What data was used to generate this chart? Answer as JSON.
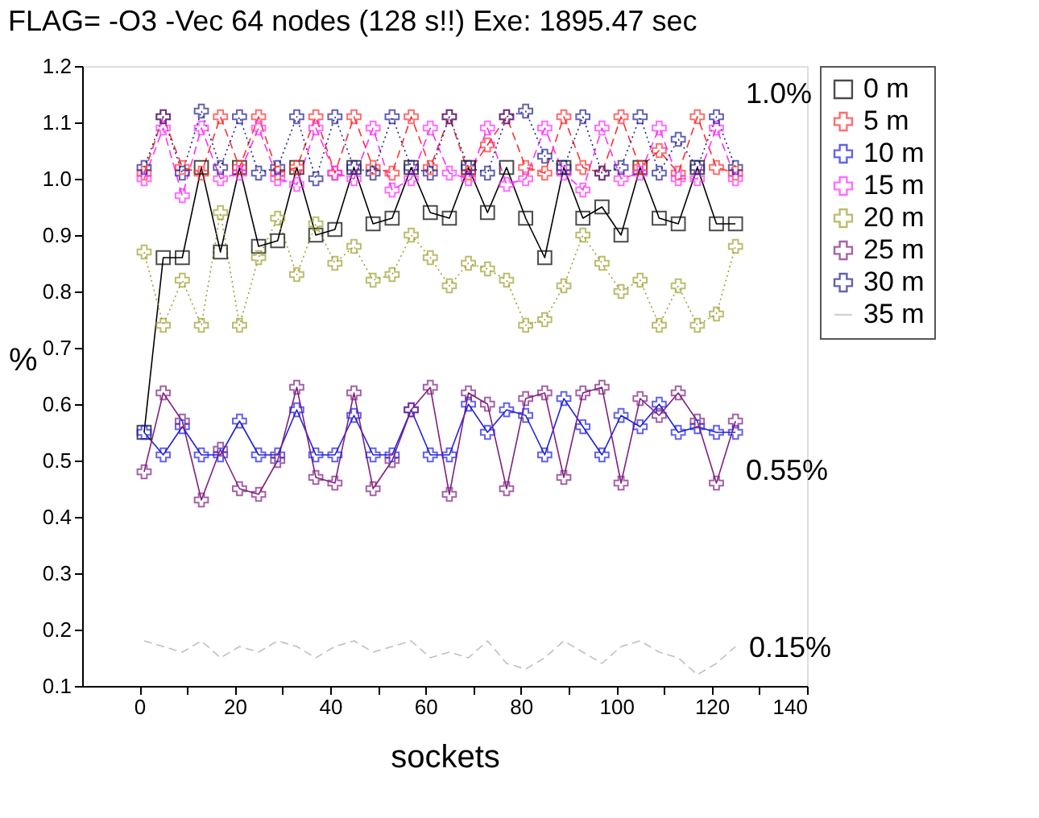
{
  "chart_data": {
    "type": "line",
    "title": "FLAG= -O3 -Vec   64 nodes (128 s!!) Exe: 1895.47 sec",
    "xlabel": "sockets",
    "ylabel": "%",
    "x": [
      1,
      5,
      9,
      13,
      17,
      21,
      25,
      29,
      33,
      37,
      41,
      45,
      49,
      53,
      57,
      61,
      65,
      69,
      73,
      77,
      81,
      85,
      89,
      93,
      97,
      101,
      105,
      109,
      113,
      117,
      121,
      125
    ],
    "xlim": [
      -12,
      140
    ],
    "xticks": [
      0,
      {
        "value": 10,
        "label": null
      },
      20,
      {
        "value": 30,
        "label": null
      },
      40,
      {
        "value": 50,
        "label": null
      },
      60,
      {
        "value": 70,
        "label": null
      },
      80,
      {
        "value": 90,
        "label": null
      },
      100,
      {
        "value": 110,
        "label": null
      },
      120,
      {
        "value": 130,
        "label": null
      },
      140
    ],
    "ylim": [
      0.1,
      1.2
    ],
    "yticks": [
      0.1,
      0.2,
      0.3,
      0.4,
      0.5,
      0.6,
      0.7,
      0.8,
      0.9,
      {
        "value": 1.0,
        "label": "1.0"
      },
      1.1,
      1.2
    ],
    "grid": false,
    "legend": "right",
    "annotations": [
      "1.0%",
      "0.55%",
      "0.15%"
    ],
    "series": [
      {
        "name": "0 m",
        "color": "#000000",
        "marker": "square",
        "line_style": "solid",
        "values": [
          0.55,
          0.86,
          0.86,
          1.02,
          0.87,
          1.02,
          0.88,
          0.89,
          1.02,
          0.9,
          0.91,
          1.02,
          0.92,
          0.93,
          1.02,
          0.94,
          0.93,
          1.02,
          0.94,
          1.02,
          0.93,
          0.86,
          1.02,
          0.93,
          0.95,
          0.9,
          1.02,
          0.93,
          0.92,
          1.02,
          0.92,
          0.92
        ]
      },
      {
        "name": "5 m",
        "color": "#ff3030",
        "marker": "cross",
        "line_style": "dashed",
        "values": [
          1.01,
          1.11,
          1.02,
          1.01,
          1.11,
          1.02,
          1.11,
          1.01,
          1.02,
          1.11,
          1.01,
          1.11,
          1.02,
          1.01,
          1.11,
          1.02,
          1.11,
          1.01,
          1.06,
          1.11,
          1.02,
          1.01,
          1.11,
          1.02,
          1.01,
          1.11,
          1.02,
          1.05,
          1.01,
          1.11,
          1.02,
          1.01
        ]
      },
      {
        "name": "10 m",
        "color": "#2020e0",
        "marker": "cross",
        "line_style": "solid",
        "values": [
          0.55,
          0.51,
          0.56,
          0.51,
          0.51,
          0.57,
          0.51,
          0.51,
          0.59,
          0.51,
          0.51,
          0.58,
          0.51,
          0.51,
          0.59,
          0.51,
          0.51,
          0.6,
          0.55,
          0.59,
          0.58,
          0.51,
          0.61,
          0.56,
          0.51,
          0.58,
          0.56,
          0.6,
          0.55,
          0.56,
          0.55,
          0.55
        ]
      },
      {
        "name": "15 m",
        "color": "#ff30ff",
        "marker": "cross",
        "line_style": "dashed",
        "values": [
          1.0,
          1.09,
          0.97,
          1.09,
          1.0,
          1.01,
          1.09,
          1.0,
          0.99,
          1.09,
          1.01,
          1.0,
          1.09,
          0.98,
          1.0,
          1.09,
          1.01,
          1.0,
          1.09,
          0.99,
          1.0,
          1.09,
          1.01,
          0.98,
          1.09,
          1.0,
          1.01,
          1.09,
          1.0,
          1.0,
          1.09,
          1.0
        ]
      },
      {
        "name": "20 m",
        "color": "#a0a030",
        "marker": "cross",
        "line_style": "dotted",
        "values": [
          0.87,
          0.74,
          0.82,
          0.74,
          0.94,
          0.74,
          0.86,
          0.93,
          0.83,
          0.92,
          0.85,
          0.88,
          0.82,
          0.83,
          0.9,
          0.86,
          0.81,
          0.85,
          0.84,
          0.82,
          0.74,
          0.75,
          0.81,
          0.9,
          0.85,
          0.8,
          0.82,
          0.74,
          0.81,
          0.74,
          0.76,
          0.88
        ]
      },
      {
        "name": "25 m",
        "color": "#802080",
        "marker": "cross",
        "line_style": "solid",
        "values": [
          0.48,
          0.62,
          0.57,
          0.43,
          0.52,
          0.45,
          0.44,
          0.5,
          0.63,
          0.47,
          0.46,
          0.62,
          0.45,
          0.5,
          0.59,
          0.63,
          0.44,
          0.62,
          0.6,
          0.45,
          0.61,
          0.62,
          0.47,
          0.62,
          0.63,
          0.46,
          0.61,
          0.58,
          0.62,
          0.57,
          0.46,
          0.57
        ]
      },
      {
        "name": "30 m",
        "color": "#202090",
        "marker": "cross",
        "line_style": "dotted",
        "values": [
          1.02,
          1.11,
          1.01,
          1.12,
          1.02,
          1.11,
          1.01,
          1.02,
          1.11,
          1.0,
          1.11,
          1.02,
          1.01,
          1.11,
          1.02,
          1.01,
          1.11,
          1.02,
          1.01,
          1.11,
          1.12,
          1.04,
          1.02,
          1.11,
          1.01,
          1.02,
          1.11,
          1.01,
          1.07,
          1.02,
          1.11,
          1.02
        ]
      },
      {
        "name": "35 m",
        "color": "#c0c0c0",
        "marker": "none",
        "line_style": "dashed",
        "values": [
          0.18,
          0.17,
          0.16,
          0.18,
          0.15,
          0.17,
          0.16,
          0.18,
          0.17,
          0.15,
          0.17,
          0.18,
          0.16,
          0.17,
          0.18,
          0.15,
          0.16,
          0.15,
          0.18,
          0.14,
          0.13,
          0.15,
          0.18,
          0.16,
          0.14,
          0.17,
          0.18,
          0.16,
          0.15,
          0.12,
          0.14,
          0.17
        ]
      }
    ]
  }
}
